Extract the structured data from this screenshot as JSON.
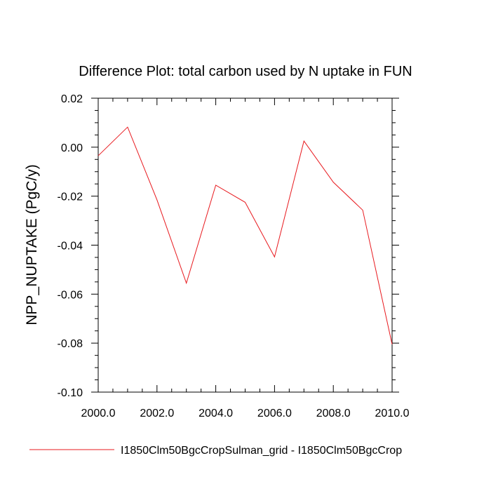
{
  "chart_data": {
    "type": "line",
    "title": "Difference Plot: total carbon used by N uptake in FUN",
    "xlabel": "",
    "ylabel": "NPP_NUPTAKE  (PgC/y)",
    "xlim": [
      2000.0,
      2010.0
    ],
    "ylim": [
      -0.1,
      0.02
    ],
    "xticks": [
      "2000.0",
      "2002.0",
      "2004.0",
      "2006.0",
      "2008.0",
      "2010.0"
    ],
    "yticks": [
      "0.02",
      "0.00",
      "-0.02",
      "-0.04",
      "-0.06",
      "-0.08",
      "-0.10"
    ],
    "grid": false,
    "legend_position": "bottom",
    "series": [
      {
        "name": "I1850Clm50BgcCropSulman_grid - I1850Clm50BgcCrop",
        "color": "#e8191e",
        "x": [
          2000,
          2001,
          2002,
          2003,
          2004,
          2005,
          2006,
          2007,
          2008,
          2009,
          2010
        ],
        "y": [
          -0.0035,
          0.0082,
          -0.0215,
          -0.0555,
          -0.0155,
          -0.0225,
          -0.0448,
          0.0025,
          -0.0143,
          -0.0257,
          -0.0805
        ]
      }
    ]
  }
}
